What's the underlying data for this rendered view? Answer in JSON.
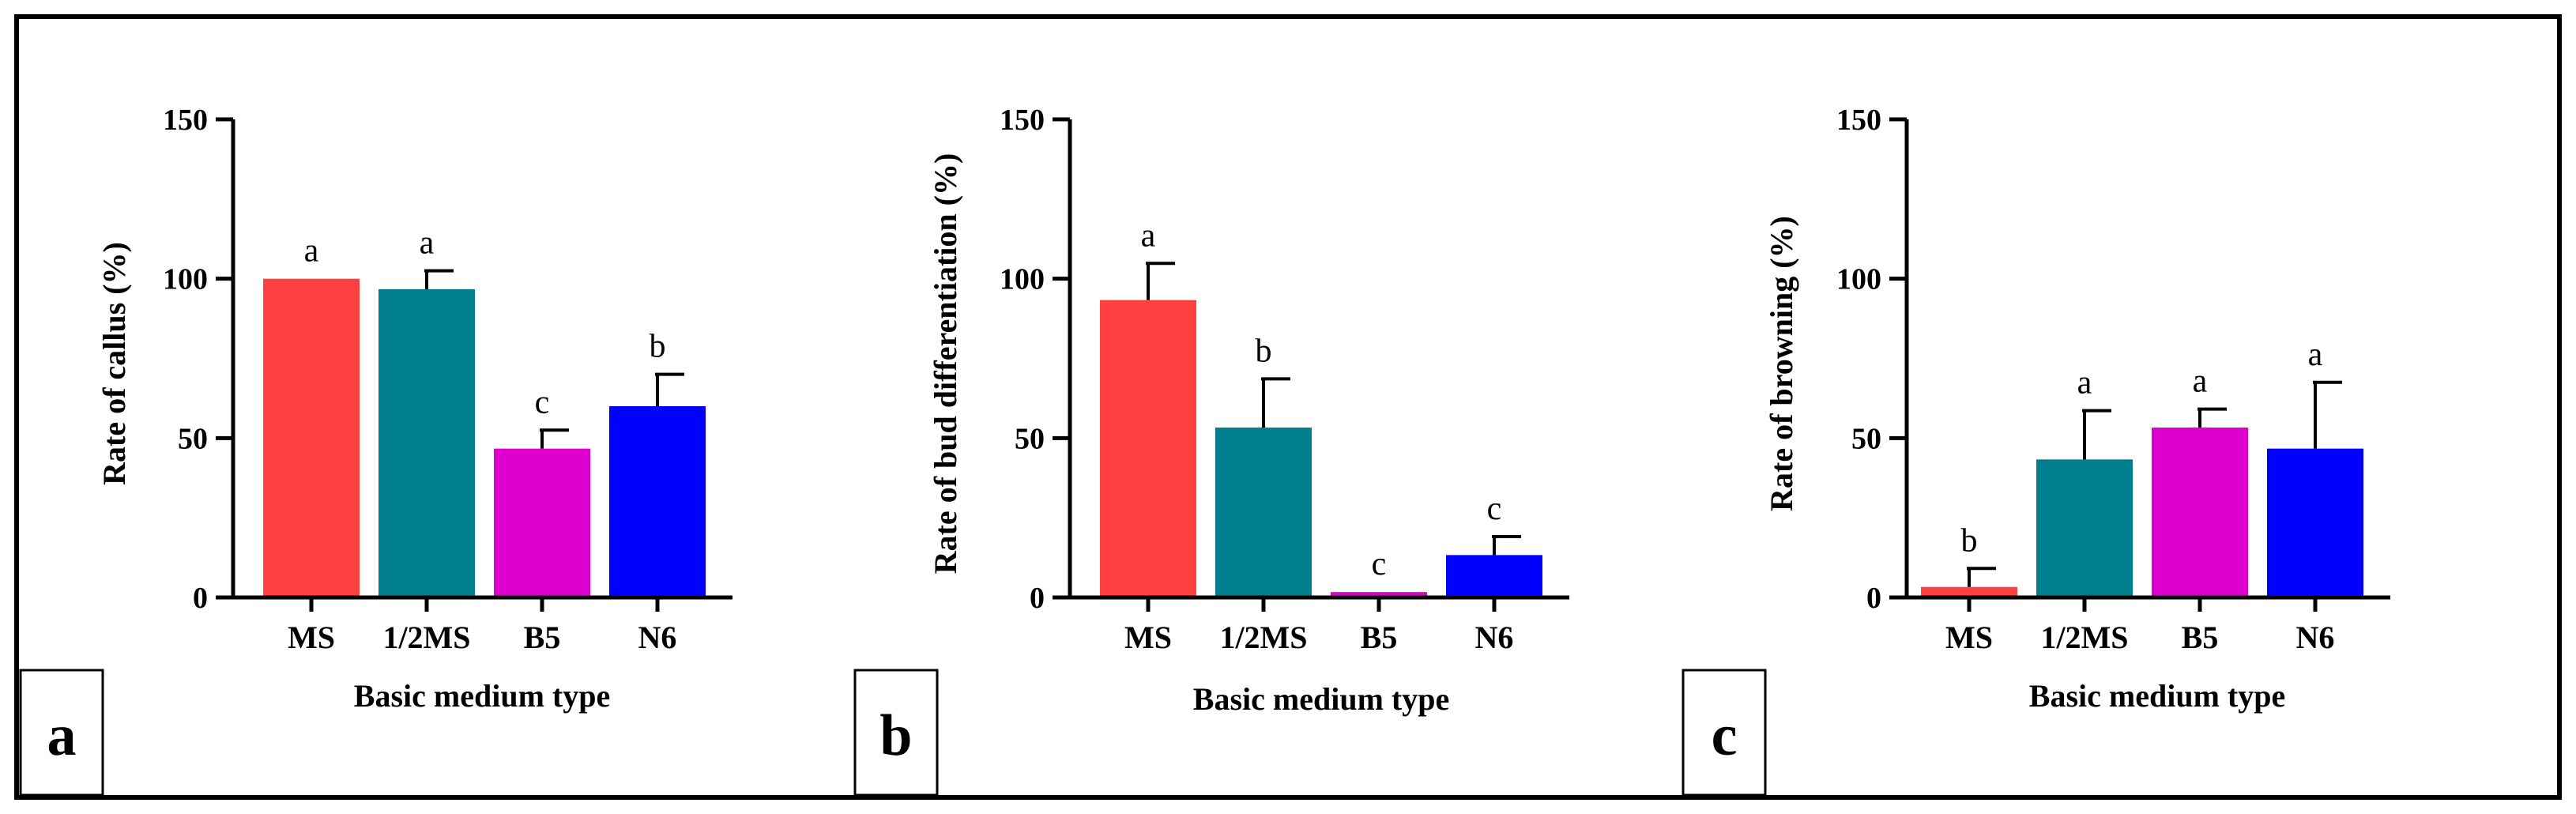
{
  "figure": {
    "bar_colors": [
      "#ff4040",
      "#00808f",
      "#dd00cc",
      "#0000ff"
    ],
    "axis_color": "#000000"
  },
  "chart_data": [
    {
      "type": "bar",
      "panel_label": "a",
      "categories": [
        "MS",
        "1/2MS",
        "B5",
        "N6"
      ],
      "values": [
        100,
        96.7,
        46.7,
        60
      ],
      "error": [
        0,
        5.8,
        5.8,
        10
      ],
      "letters": [
        "a",
        "a",
        "c",
        "b"
      ],
      "xlabel": "Basic medium type",
      "ylabel": "Rate of callus (%)",
      "ylim": [
        0,
        150
      ],
      "yticks": [
        0,
        50,
        100,
        150
      ],
      "ytick_labels": [
        "0",
        "50",
        "100",
        "150"
      ]
    },
    {
      "type": "bar",
      "panel_label": "b",
      "categories": [
        "MS",
        "1/2MS",
        "B5",
        "N6"
      ],
      "values": [
        93.3,
        53.3,
        1.7,
        13.3
      ],
      "error": [
        11.5,
        15.3,
        0,
        5.8
      ],
      "letters": [
        "a",
        "b",
        "c",
        "c"
      ],
      "xlabel": "Basic medium type",
      "ylabel": "Rate of bud differentiation (%)",
      "ylim": [
        0,
        150
      ],
      "yticks": [
        0,
        50,
        100,
        150
      ],
      "ytick_labels": [
        "0",
        "50",
        "100",
        "150"
      ]
    },
    {
      "type": "bar",
      "panel_label": "c",
      "categories": [
        "MS",
        "1/2MS",
        "B5",
        "N6"
      ],
      "values": [
        3.3,
        43.3,
        53.3,
        46.7
      ],
      "error": [
        5.8,
        15.3,
        5.8,
        20.8
      ],
      "letters": [
        "b",
        "a",
        "a",
        "a"
      ],
      "xlabel": "Basic medium type",
      "ylabel": "Rate of browning (%)",
      "ylim": [
        0,
        150
      ],
      "yticks": [
        0,
        50,
        100,
        150
      ],
      "ytick_labels": [
        "0",
        "50",
        "100",
        "150"
      ]
    }
  ]
}
